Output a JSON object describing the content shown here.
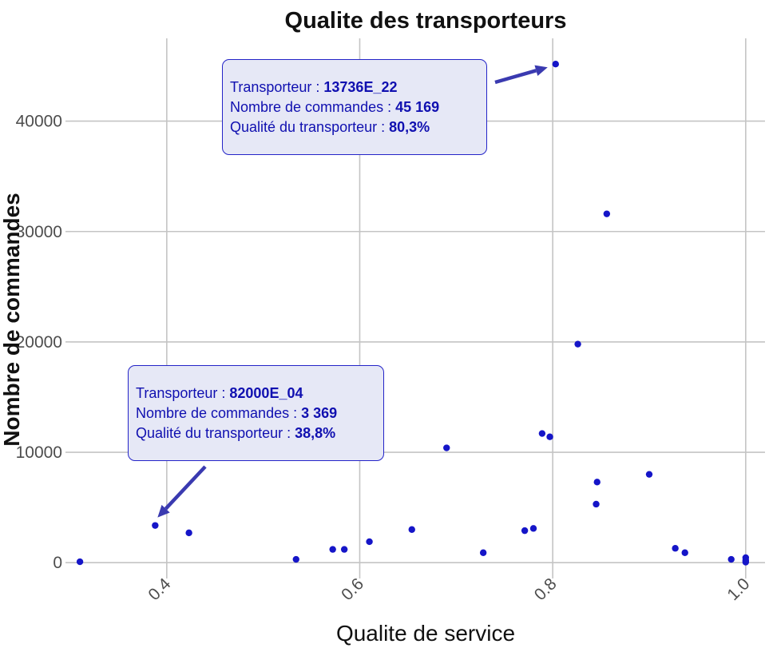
{
  "chart_data": {
    "type": "scatter",
    "title": "Qualite des transporteurs",
    "xlabel": "Qualite de service",
    "ylabel": "Nombre de commandes",
    "xlim": [
      0.3,
      1.02
    ],
    "ylim": [
      -1000,
      47500
    ],
    "xticks": [
      0.4,
      0.6,
      0.8,
      1.0
    ],
    "xtick_labels": [
      "0.4",
      "0.6",
      "0.8",
      "1.0"
    ],
    "yticks": [
      0,
      10000,
      20000,
      30000,
      40000
    ],
    "ytick_labels": [
      "0",
      "10000",
      "20000",
      "30000",
      "40000"
    ],
    "grid": true,
    "point_color": "#1515c8",
    "points": [
      {
        "x": 0.31,
        "y": 80
      },
      {
        "x": 0.388,
        "y": 3369
      },
      {
        "x": 0.423,
        "y": 2700
      },
      {
        "x": 0.534,
        "y": 300
      },
      {
        "x": 0.572,
        "y": 1200
      },
      {
        "x": 0.584,
        "y": 1200
      },
      {
        "x": 0.61,
        "y": 1900
      },
      {
        "x": 0.654,
        "y": 3000
      },
      {
        "x": 0.69,
        "y": 10400
      },
      {
        "x": 0.728,
        "y": 900
      },
      {
        "x": 0.771,
        "y": 2900
      },
      {
        "x": 0.78,
        "y": 3100
      },
      {
        "x": 0.789,
        "y": 11700
      },
      {
        "x": 0.797,
        "y": 11400
      },
      {
        "x": 0.803,
        "y": 45169
      },
      {
        "x": 0.826,
        "y": 19800
      },
      {
        "x": 0.845,
        "y": 5300
      },
      {
        "x": 0.846,
        "y": 7300
      },
      {
        "x": 0.856,
        "y": 31600
      },
      {
        "x": 0.9,
        "y": 8000
      },
      {
        "x": 0.927,
        "y": 1300
      },
      {
        "x": 0.937,
        "y": 900
      },
      {
        "x": 0.985,
        "y": 300
      },
      {
        "x": 1.0,
        "y": 450
      },
      {
        "x": 1.0,
        "y": 200
      },
      {
        "x": 1.0,
        "y": 50
      }
    ],
    "annotations": [
      {
        "label_carrier": "Transporteur : ",
        "value_carrier": "13736E_22",
        "label_orders": "Nombre de commandes : ",
        "value_orders": "45 169",
        "label_quality": "Qualité du transporteur : ",
        "value_quality": "80,3%",
        "target_x": 0.803,
        "target_y": 45169
      },
      {
        "label_carrier": "Transporteur : ",
        "value_carrier": "82000E_04",
        "label_orders": "Nombre de commandes : ",
        "value_orders": "3 369",
        "label_quality": "Qualité du transporteur : ",
        "value_quality": "38,8%",
        "target_x": 0.388,
        "target_y": 3369
      }
    ],
    "annotation_color": "#3a3ab0"
  }
}
